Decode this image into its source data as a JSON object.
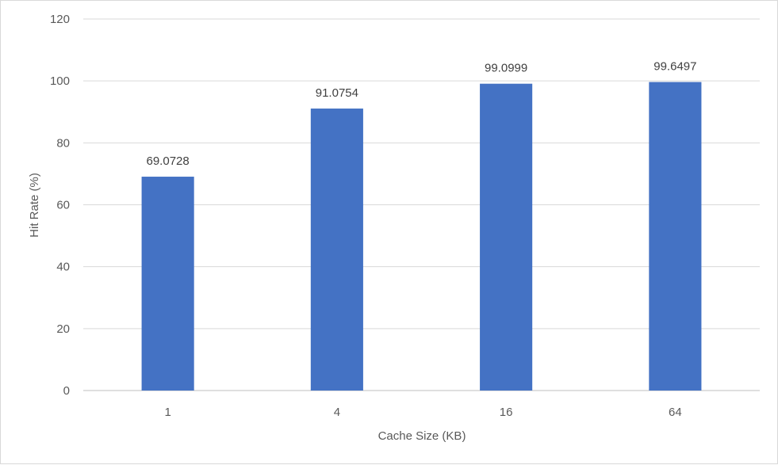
{
  "chart_data": {
    "type": "bar",
    "categories": [
      "1",
      "4",
      "16",
      "64"
    ],
    "values": [
      69.0728,
      91.0754,
      99.0999,
      99.6497
    ],
    "data_labels": [
      "69.0728",
      "91.0754",
      "99.0999",
      "99.6497"
    ],
    "xlabel": "Cache Size (KB)",
    "ylabel": "Hit Rate (%)",
    "ylim": [
      0,
      120
    ],
    "yticks": [
      0,
      20,
      40,
      60,
      80,
      100,
      120
    ],
    "ytick_labels": [
      "0",
      "20",
      "40",
      "60",
      "80",
      "100",
      "120"
    ],
    "grid": true,
    "legend": "none",
    "colors": {
      "bar": "#4472c4",
      "grid": "#d9d9d9",
      "axis": "#bfbfbf"
    }
  }
}
